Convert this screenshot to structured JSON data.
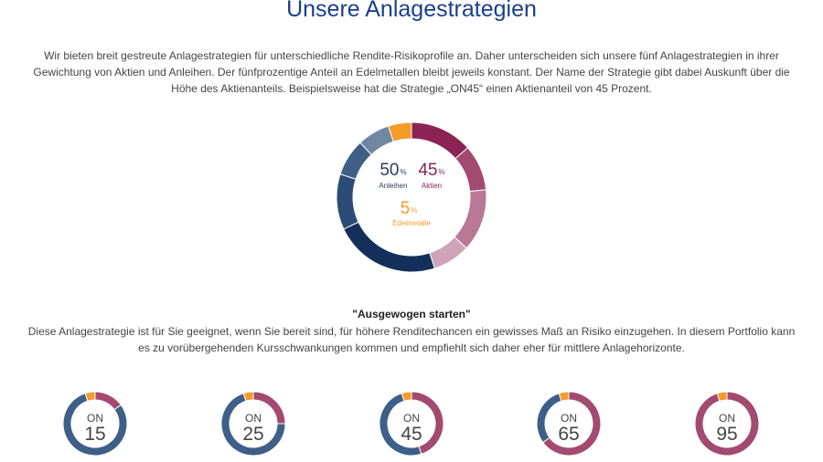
{
  "header": {
    "title": "Unsere Anlagestrategien"
  },
  "intro": "Wir bieten breit gestreute Anlagestrategien für unterschiedliche Rendite-Risikoprofile an. Daher unterscheiden sich unsere fünf Anlagestrategien in ihrer Gewichtung von Aktien und Anleihen. Der fünfprozentige Anteil an Edelmetallen bleibt jeweils konstant. Der Name der Strategie gibt dabei Auskunft über die Höhe des Aktienanteils. Beispielsweise hat die Strategie „ON45“ einen Aktienanteil von 45 Prozent.",
  "allocation": {
    "bonds": {
      "value": "50",
      "unit": "%",
      "label": "Anleihen"
    },
    "stocks": {
      "value": "45",
      "unit": "%",
      "label": "Aktien"
    },
    "metals": {
      "value": "5",
      "unit": "%",
      "label": "Edelmetalle"
    }
  },
  "chart_data": {
    "type": "pie",
    "categories": [
      "Aktien",
      "Anleihen",
      "Edelmetalle"
    ],
    "values": [
      45,
      50,
      5
    ]
  },
  "colors": {
    "title": "#1b3f8b",
    "stocks": [
      "#8b2454",
      "#a34a70",
      "#b97895",
      "#cfa4b8"
    ],
    "bonds": [
      "#14305a",
      "#2b4c77",
      "#3d5f88",
      "#6f87a1"
    ],
    "metals": "#f39c2a",
    "ring_stocks": "#a34a70",
    "ring_bonds": "#3d5f88"
  },
  "strategy": {
    "title": "\"Ausgewogen starten\"",
    "description": "Diese Anlagestrategie ist für Sie geeignet, wenn Sie bereit sind, für höhere Renditechancen ein gewisses Maß an Risiko einzugehen. In diesem Portfolio kann es zu vorübergehenden Kursschwankungen kommen und empfiehlt sich daher eher für mittlere Anlagehorizonte."
  },
  "strategies": [
    {
      "prefix": "ON",
      "number": "15",
      "stocks": 15
    },
    {
      "prefix": "ON",
      "number": "25",
      "stocks": 25
    },
    {
      "prefix": "ON",
      "number": "45",
      "stocks": 45
    },
    {
      "prefix": "ON",
      "number": "65",
      "stocks": 65
    },
    {
      "prefix": "ON",
      "number": "95",
      "stocks": 95
    }
  ]
}
